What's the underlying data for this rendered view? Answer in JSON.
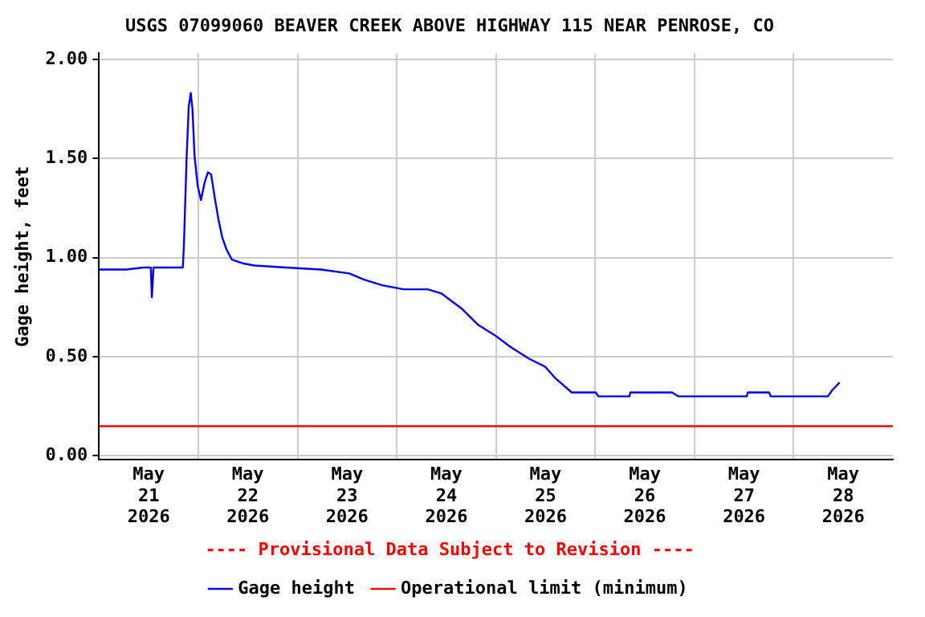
{
  "chart_data": {
    "type": "line",
    "title": "USGS 07099060 BEAVER CREEK ABOVE HIGHWAY 115 NEAR PENROSE, CO",
    "ylabel": "Gage height, feet",
    "annotations": [
      "---- Provisional Data Subject to Revision ----"
    ],
    "x": [
      "2026-05-21T00:00",
      "2026-05-21T06:35",
      "2026-05-21T10:43",
      "2026-05-21T12:31",
      "2026-05-21T12:46",
      "2026-05-21T13:10",
      "2026-05-21T20:16",
      "2026-05-21T20:31",
      "2026-05-21T20:47",
      "2026-05-21T21:10",
      "2026-05-21T21:41",
      "2026-05-21T22:11",
      "2026-05-21T22:35",
      "2026-05-21T23:06",
      "2026-05-21T23:52",
      "2026-05-22T00:39",
      "2026-05-22T01:33",
      "2026-05-22T02:19",
      "2026-05-22T03:06",
      "2026-05-22T04:00",
      "2026-05-22T04:54",
      "2026-05-22T05:49",
      "2026-05-22T06:50",
      "2026-05-22T08:08",
      "2026-05-22T10:58",
      "2026-05-22T13:33",
      "2026-05-22T21:17",
      "2026-05-23T05:41",
      "2026-05-23T12:31",
      "2026-05-23T16:00",
      "2026-05-23T20:31",
      "2026-05-24T01:41",
      "2026-05-24T07:29",
      "2026-05-24T10:43",
      "2026-05-24T15:52",
      "2026-05-24T19:44",
      "2026-05-24T23:37",
      "2026-05-25T03:29",
      "2026-05-25T08:00",
      "2026-05-25T11:52",
      "2026-05-25T14:27",
      "2026-05-25T18:19",
      "2026-05-26T00:08",
      "2026-05-26T00:47",
      "2026-05-26T08:16",
      "2026-05-26T08:31",
      "2026-05-26T18:35",
      "2026-05-26T20:08",
      "2026-05-27T12:39",
      "2026-05-27T12:55",
      "2026-05-27T18:04",
      "2026-05-27T18:27",
      "2026-05-28T08:16",
      "2026-05-28T09:17",
      "2026-05-28T11:06"
    ],
    "series": [
      {
        "name": "Gage height",
        "color": "#0000ff",
        "values": [
          0.94,
          0.94,
          0.95,
          0.95,
          0.8,
          0.95,
          0.95,
          1.06,
          1.24,
          1.5,
          1.76,
          1.83,
          1.75,
          1.51,
          1.36,
          1.29,
          1.38,
          1.43,
          1.42,
          1.3,
          1.19,
          1.1,
          1.04,
          0.99,
          0.97,
          0.96,
          0.95,
          0.94,
          0.92,
          0.89,
          0.86,
          0.84,
          0.84,
          0.82,
          0.74,
          0.66,
          0.61,
          0.55,
          0.49,
          0.45,
          0.39,
          0.32,
          0.32,
          0.3,
          0.3,
          0.32,
          0.32,
          0.3,
          0.3,
          0.32,
          0.32,
          0.3,
          0.3,
          0.33,
          0.37
        ]
      }
    ],
    "ref_lines": [
      {
        "axis": "y",
        "value": 0.15,
        "label": "Operational limit (minimum)",
        "color": "#ff0000"
      }
    ],
    "xlim": [
      "2026-05-21T00:00",
      "2026-05-29T00:00"
    ],
    "xticks": [
      {
        "value": "2026-05-21T12:00",
        "label": "May 21 2026"
      },
      {
        "value": "2026-05-22T00:00",
        "label": null
      },
      {
        "value": "2026-05-22T12:00",
        "label": "May 22 2026"
      },
      {
        "value": "2026-05-23T00:00",
        "label": null
      },
      {
        "value": "2026-05-23T12:00",
        "label": "May 23 2026"
      },
      {
        "value": "2026-05-24T00:00",
        "label": null
      },
      {
        "value": "2026-05-24T12:00",
        "label": "May 24 2026"
      },
      {
        "value": "2026-05-25T00:00",
        "label": null
      },
      {
        "value": "2026-05-25T12:00",
        "label": "May 25 2026"
      },
      {
        "value": "2026-05-26T00:00",
        "label": null
      },
      {
        "value": "2026-05-26T12:00",
        "label": "May 26 2026"
      },
      {
        "value": "2026-05-27T00:00",
        "label": null
      },
      {
        "value": "2026-05-27T12:00",
        "label": "May 27 2026"
      },
      {
        "value": "2026-05-28T00:00",
        "label": null
      },
      {
        "value": "2026-05-28T12:00",
        "label": "May 28 2026"
      }
    ],
    "ylim": [
      -0.02,
      2.03
    ],
    "yticks": [
      {
        "value": 0,
        "label": "0.00"
      },
      {
        "value": 0.5,
        "label": "0.50"
      },
      {
        "value": 1,
        "label": "1.00"
      },
      {
        "value": 1.5,
        "label": "1.50"
      },
      {
        "value": 2,
        "label": "2.00"
      }
    ],
    "grid": true,
    "legend": "bottom",
    "marker": "none",
    "line_style": "solid"
  }
}
